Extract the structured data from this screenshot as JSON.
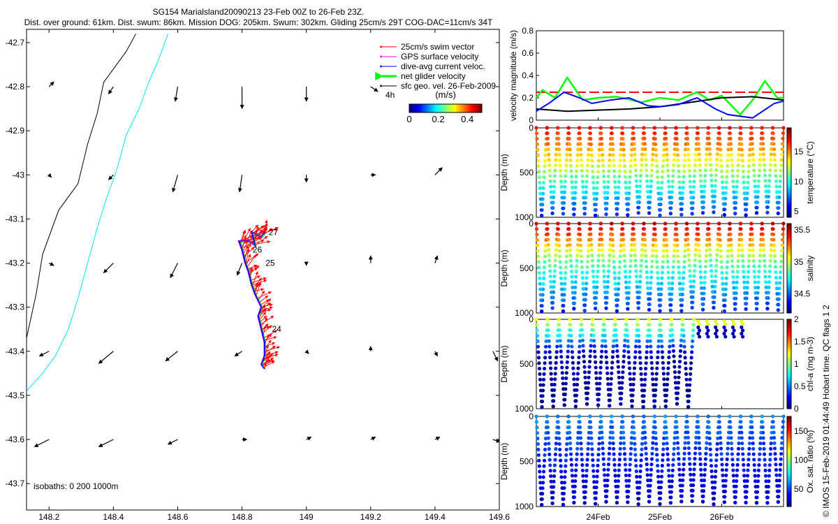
{
  "header": {
    "title": "SG154 Marialsland20090213 23-Feb 00Z to 26-Feb 23Z.",
    "subtitle": "Dist. over ground: 61km. Dist. swum: 86km. Mission DOG: 205km. Swum: 302km. Gliding 25cm/s 29T COG-DAC=11cm/s 34T"
  },
  "map": {
    "xticks": [
      "148.2",
      "148.4",
      "148.6",
      "148.8",
      "149",
      "149.2",
      "149.4",
      "149.6"
    ],
    "yticks": [
      "-42.7",
      "-42.8",
      "-42.9",
      "-43",
      "-43.1",
      "-43.2",
      "-43.3",
      "-43.4",
      "-43.5",
      "-43.6",
      "-43.7"
    ],
    "xlim": [
      148.13,
      149.6
    ],
    "ylim": [
      -43.76,
      -42.67
    ],
    "legend": [
      {
        "label": "25cm/s swim vector",
        "color": "#ff0000"
      },
      {
        "label": "GPS surface velocity",
        "color": "#ff00ff"
      },
      {
        "label": "dive-avg current veloc.",
        "color": "#0000ff"
      },
      {
        "label": "net glider velocity",
        "color": "#00ff00"
      },
      {
        "label": "sfc geo. vel. 26-Feb-2009",
        "color": "#000000"
      }
    ],
    "scale_label": "4h",
    "colorbar": {
      "units": "(m/s)",
      "ticks": [
        "0",
        "0.2",
        "0.4"
      ],
      "range": [
        0,
        0.5
      ]
    },
    "isobaths": "isobaths: 0   200  1000m",
    "day_labels": [
      {
        "text": "27",
        "lon": 148.87,
        "lat": -43.13
      },
      {
        "text": "26",
        "lon": 148.82,
        "lat": -43.17
      },
      {
        "text": "25",
        "lon": 148.86,
        "lat": -43.2
      },
      {
        "text": "24",
        "lon": 148.88,
        "lat": -43.35
      }
    ],
    "coast_0m": [
      [
        148.47,
        -42.68
      ],
      [
        148.44,
        -42.72
      ],
      [
        148.4,
        -42.76
      ],
      [
        148.37,
        -42.79
      ],
      [
        148.35,
        -42.86
      ],
      [
        148.32,
        -42.93
      ],
      [
        148.29,
        -43.02
      ],
      [
        148.23,
        -43.08
      ],
      [
        148.18,
        -43.18
      ],
      [
        148.16,
        -43.27
      ],
      [
        148.13,
        -43.37
      ]
    ],
    "isobath_200m": [
      [
        148.57,
        -42.68
      ],
      [
        148.54,
        -42.74
      ],
      [
        148.51,
        -42.79
      ],
      [
        148.48,
        -42.85
      ],
      [
        148.44,
        -42.91
      ],
      [
        148.41,
        -42.99
      ],
      [
        148.38,
        -43.05
      ],
      [
        148.35,
        -43.12
      ],
      [
        148.32,
        -43.2
      ],
      [
        148.29,
        -43.28
      ],
      [
        148.26,
        -43.35
      ],
      [
        148.22,
        -43.41
      ],
      [
        148.18,
        -43.45
      ],
      [
        148.13,
        -43.49
      ]
    ],
    "geo_vectors": [
      {
        "lon": 148.2,
        "lat": -42.8,
        "u": 0.02,
        "v": 0.02
      },
      {
        "lon": 148.4,
        "lat": -42.8,
        "u": -0.02,
        "v": -0.03
      },
      {
        "lon": 148.6,
        "lat": -42.8,
        "u": -0.01,
        "v": -0.06
      },
      {
        "lon": 148.8,
        "lat": -42.8,
        "u": 0.0,
        "v": -0.09
      },
      {
        "lon": 149.0,
        "lat": -42.8,
        "u": 0.0,
        "v": -0.06
      },
      {
        "lon": 149.2,
        "lat": -42.8,
        "u": 0.03,
        "v": -0.02
      },
      {
        "lon": 148.2,
        "lat": -43.0,
        "u": 0.01,
        "v": -0.01
      },
      {
        "lon": 148.4,
        "lat": -43.0,
        "u": -0.02,
        "v": -0.02
      },
      {
        "lon": 148.6,
        "lat": -43.0,
        "u": -0.02,
        "v": -0.07
      },
      {
        "lon": 148.8,
        "lat": -43.0,
        "u": -0.01,
        "v": -0.07
      },
      {
        "lon": 149.0,
        "lat": -43.0,
        "u": 0.0,
        "v": -0.03
      },
      {
        "lon": 149.2,
        "lat": -43.0,
        "u": 0.02,
        "v": 0.0
      },
      {
        "lon": 149.4,
        "lat": -43.0,
        "u": 0.03,
        "v": 0.03
      },
      {
        "lon": 148.2,
        "lat": -43.2,
        "u": 0.02,
        "v": -0.01
      },
      {
        "lon": 148.4,
        "lat": -43.2,
        "u": -0.04,
        "v": -0.04
      },
      {
        "lon": 148.6,
        "lat": -43.2,
        "u": -0.03,
        "v": -0.06
      },
      {
        "lon": 148.8,
        "lat": -43.2,
        "u": -0.02,
        "v": -0.05
      },
      {
        "lon": 149.0,
        "lat": -43.2,
        "u": 0.0,
        "v": -0.01
      },
      {
        "lon": 149.2,
        "lat": -43.2,
        "u": 0.0,
        "v": 0.03
      },
      {
        "lon": 149.4,
        "lat": -43.2,
        "u": 0.01,
        "v": 0.03
      },
      {
        "lon": 148.2,
        "lat": -43.4,
        "u": -0.04,
        "v": -0.02
      },
      {
        "lon": 148.4,
        "lat": -43.4,
        "u": -0.06,
        "v": -0.05
      },
      {
        "lon": 148.6,
        "lat": -43.4,
        "u": -0.05,
        "v": -0.04
      },
      {
        "lon": 148.8,
        "lat": -43.4,
        "u": -0.03,
        "v": -0.02
      },
      {
        "lon": 149.0,
        "lat": -43.4,
        "u": 0.01,
        "v": -0.01
      },
      {
        "lon": 149.2,
        "lat": -43.4,
        "u": 0.0,
        "v": 0.02
      },
      {
        "lon": 149.4,
        "lat": -43.4,
        "u": 0.01,
        "v": -0.02
      },
      {
        "lon": 149.58,
        "lat": -43.4,
        "u": 0.02,
        "v": -0.04
      },
      {
        "lon": 148.2,
        "lat": -43.6,
        "u": -0.06,
        "v": -0.03
      },
      {
        "lon": 148.4,
        "lat": -43.6,
        "u": -0.06,
        "v": -0.03
      },
      {
        "lon": 148.6,
        "lat": -43.6,
        "u": -0.04,
        "v": -0.02
      },
      {
        "lon": 148.8,
        "lat": -43.6,
        "u": 0.02,
        "v": 0.0
      },
      {
        "lon": 149.0,
        "lat": -43.6,
        "u": 0.02,
        "v": 0.01
      },
      {
        "lon": 149.2,
        "lat": -43.6,
        "u": 0.02,
        "v": 0.01
      },
      {
        "lon": 149.4,
        "lat": -43.6,
        "u": 0.02,
        "v": 0.01
      },
      {
        "lon": 149.58,
        "lat": -43.6,
        "u": 0.03,
        "v": -0.01
      }
    ],
    "track": [
      [
        148.87,
        -43.44
      ],
      [
        148.86,
        -43.43
      ],
      [
        148.87,
        -43.41
      ],
      [
        148.87,
        -43.38
      ],
      [
        148.86,
        -43.35
      ],
      [
        148.85,
        -43.32
      ],
      [
        148.86,
        -43.3
      ],
      [
        148.84,
        -43.27
      ],
      [
        148.83,
        -43.25
      ],
      [
        148.82,
        -43.22
      ],
      [
        148.81,
        -43.2
      ],
      [
        148.8,
        -43.17
      ],
      [
        148.79,
        -43.15
      ],
      [
        148.82,
        -43.15
      ],
      [
        148.84,
        -43.16
      ],
      [
        148.83,
        -43.13
      ],
      [
        148.86,
        -43.14
      ],
      [
        148.87,
        -43.13
      ]
    ]
  },
  "speed_panel": {
    "ylabel": "velocity magnitude (m/s)",
    "yticks": [
      "0",
      "0.2",
      "0.4",
      "0.6",
      "0.8"
    ],
    "ylim": [
      0,
      0.8
    ],
    "xlim": [
      0,
      4
    ],
    "series": [
      {
        "color": "#ff0000",
        "dashed": true,
        "x": [
          0,
          4
        ],
        "y": [
          0.25,
          0.25
        ]
      },
      {
        "color": "#00ff00",
        "x": [
          0,
          0.1,
          0.3,
          0.5,
          0.75,
          1.0,
          1.3,
          1.7,
          2.0,
          2.3,
          2.6,
          2.8,
          3.0,
          3.3,
          3.5,
          3.7,
          3.9,
          4.0
        ],
        "y": [
          0.2,
          0.27,
          0.2,
          0.38,
          0.18,
          0.2,
          0.21,
          0.16,
          0.2,
          0.18,
          0.25,
          0.18,
          0.22,
          0.05,
          0.18,
          0.35,
          0.2,
          0.2
        ]
      },
      {
        "color": "#000000",
        "x": [
          0,
          0.5,
          1.0,
          1.5,
          2.0,
          2.5,
          3.0,
          3.5,
          4.0
        ],
        "y": [
          0.1,
          0.08,
          0.09,
          0.1,
          0.12,
          0.16,
          0.2,
          0.21,
          0.18
        ]
      },
      {
        "color": "#0000ff",
        "x": [
          0,
          0.2,
          0.45,
          0.7,
          0.9,
          1.2,
          1.5,
          1.8,
          2.0,
          2.3,
          2.6,
          2.9,
          3.1,
          3.5,
          3.85,
          4.0
        ],
        "y": [
          0.08,
          0.15,
          0.25,
          0.2,
          0.15,
          0.18,
          0.2,
          0.13,
          0.12,
          0.14,
          0.2,
          0.1,
          0.05,
          0.02,
          0.15,
          0.17
        ]
      }
    ]
  },
  "sections": [
    {
      "key": "temperature",
      "label": "temperature (°C)",
      "cticks": [
        "5",
        "10",
        "15"
      ],
      "crange": [
        4,
        19
      ],
      "surface": [
        17,
        13,
        6
      ],
      "ylabel": "Depth (m)",
      "yticks": [
        "0",
        "500",
        "1000"
      ],
      "dives": 23,
      "cutoff": null
    },
    {
      "key": "salinity",
      "label": "salinity",
      "cticks": [
        "34.5",
        "35",
        "35.5"
      ],
      "crange": [
        34.2,
        35.6
      ],
      "surface": [
        35.5,
        34.9,
        34.4
      ],
      "ylabel": "Depth (m)",
      "yticks": [
        "0",
        "500",
        "1000"
      ],
      "dives": 23,
      "cutoff": null
    },
    {
      "key": "chla",
      "label": "chl-a (mg m-3)",
      "cticks": [
        "0",
        "0.5",
        "1",
        "1.5",
        "2"
      ],
      "crange": [
        0,
        2
      ],
      "surface": [
        1.2,
        0.1,
        0.05
      ],
      "ylabel": "Depth (m)",
      "yticks": [
        "0",
        "500",
        "1000"
      ],
      "dives": 14,
      "cutoff": 2.55
    },
    {
      "key": "oxygen",
      "label": "Ox. sat. ratio (%)",
      "cticks": [
        "50",
        "100",
        "150"
      ],
      "crange": [
        20,
        175
      ],
      "surface": [
        60,
        45,
        30
      ],
      "ylabel": "Depth (m)",
      "yticks": [
        "0",
        "500",
        "1000"
      ],
      "dives": 23,
      "cutoff": null
    }
  ],
  "time_axis": {
    "ticks": [
      "24Feb",
      "25Feb",
      "26Feb"
    ],
    "positions": [
      1,
      2,
      3
    ]
  },
  "credit": "© IMOS 15-Feb-2019 01:44:49 Hobart time. QC flags 1  2"
}
